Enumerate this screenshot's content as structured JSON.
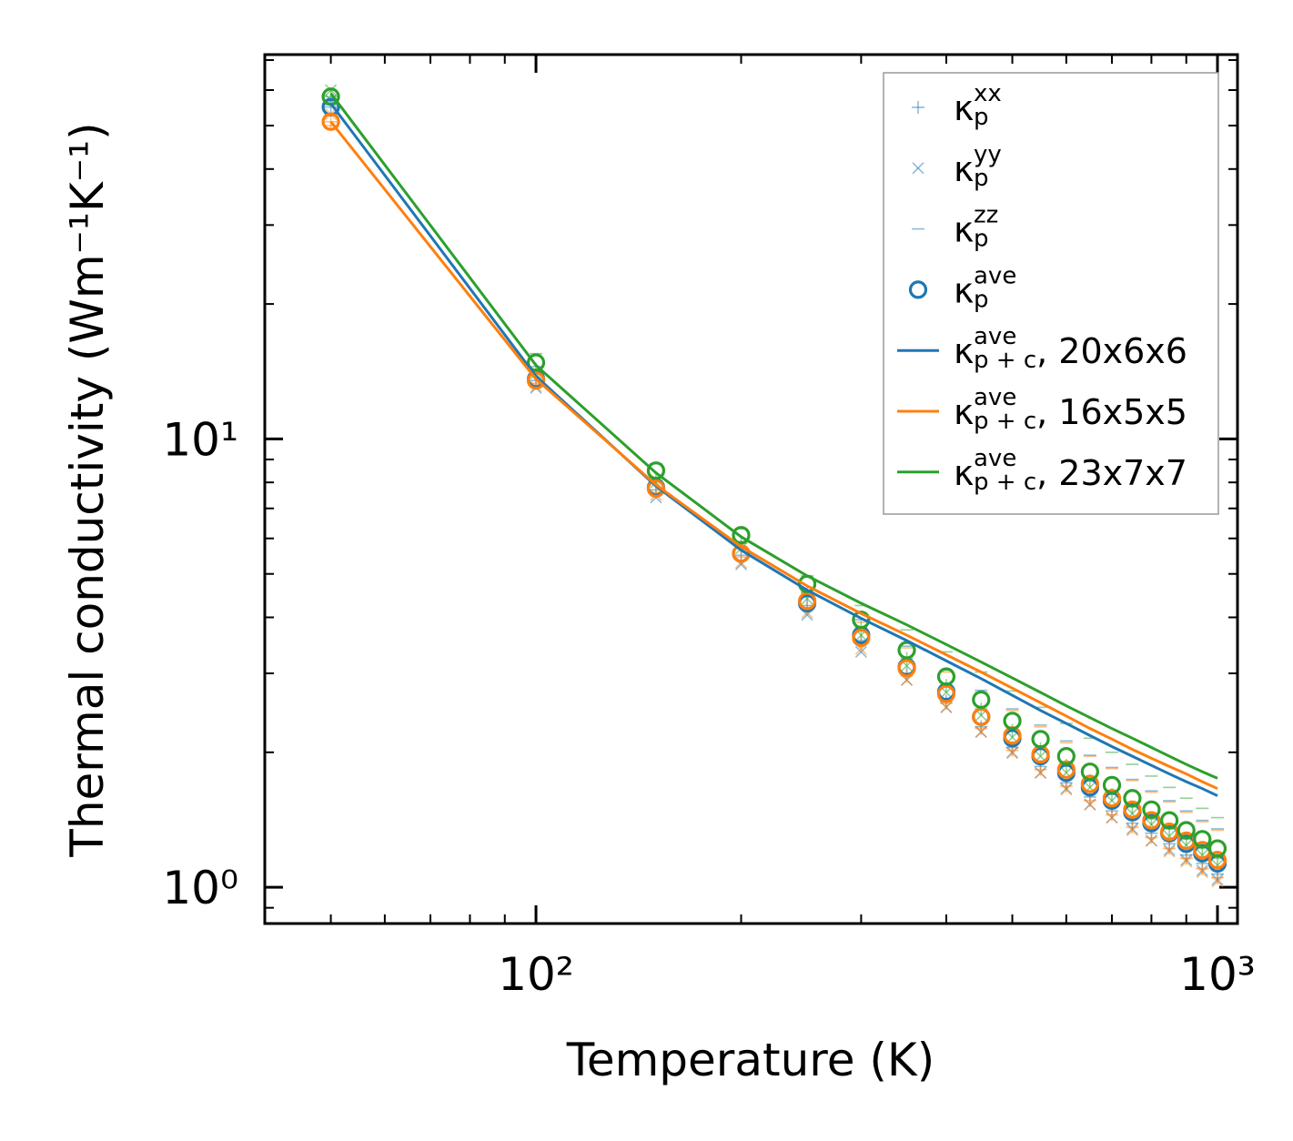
{
  "chart_data": {
    "type": "scatter",
    "scale": "log-log",
    "xlabel": "Temperature (K)",
    "ylabel": "Thermal conductivity (Wm⁻¹K⁻¹)",
    "xlim": [
      40,
      1070
    ],
    "ylim": [
      0.83,
      72
    ],
    "x_major_ticks": [
      100,
      1000
    ],
    "x_major_tick_labels": [
      "10²",
      "10³"
    ],
    "y_major_ticks": [
      1,
      10
    ],
    "y_major_tick_labels": [
      "10⁰",
      "10¹"
    ],
    "colors": {
      "blue": "#1f77b4",
      "orange": "#ff7f0e",
      "green": "#2ca02c"
    },
    "temperatures": [
      50,
      100,
      150,
      200,
      250,
      300,
      350,
      400,
      450,
      500,
      550,
      600,
      650,
      700,
      750,
      800,
      850,
      900,
      950,
      1000
    ],
    "series": [
      {
        "name": "20x6x6",
        "color": "#1f77b4",
        "kappa_xx": [
          55,
          13.5,
          7.7,
          5.5,
          4.25,
          3.55,
          3.0,
          2.6,
          2.28,
          2.05,
          1.86,
          1.71,
          1.59,
          1.48,
          1.39,
          1.32,
          1.25,
          1.18,
          1.13,
          1.07
        ],
        "kappa_yy": [
          57,
          13.0,
          7.4,
          5.25,
          4.05,
          3.35,
          2.9,
          2.52,
          2.22,
          2.0,
          1.8,
          1.66,
          1.53,
          1.43,
          1.35,
          1.27,
          1.21,
          1.15,
          1.09,
          1.04
        ],
        "kappa_zz": [
          53,
          14.5,
          8.2,
          5.9,
          4.6,
          3.95,
          3.45,
          3.05,
          2.75,
          2.5,
          2.3,
          2.12,
          1.97,
          1.85,
          1.74,
          1.64,
          1.56,
          1.48,
          1.41,
          1.35
        ],
        "kappa_ave": [
          55,
          13.6,
          7.8,
          5.55,
          4.3,
          3.65,
          3.1,
          2.73,
          2.4,
          2.15,
          1.96,
          1.8,
          1.67,
          1.56,
          1.47,
          1.39,
          1.32,
          1.25,
          1.19,
          1.13
        ],
        "kappa_pc": [
          56,
          13.8,
          7.85,
          5.65,
          4.6,
          3.98,
          3.55,
          3.2,
          2.92,
          2.68,
          2.48,
          2.32,
          2.18,
          2.06,
          1.96,
          1.87,
          1.79,
          1.72,
          1.66,
          1.6
        ]
      },
      {
        "name": "16x5x5",
        "color": "#ff7f0e",
        "kappa_xx": [
          51,
          13.3,
          7.6,
          5.45,
          4.2,
          3.5,
          2.96,
          2.57,
          2.26,
          2.02,
          1.83,
          1.68,
          1.56,
          1.45,
          1.36,
          1.29,
          1.22,
          1.16,
          1.1,
          1.05
        ],
        "kappa_yy": [
          53,
          13.1,
          7.5,
          5.3,
          4.1,
          3.4,
          2.9,
          2.52,
          2.22,
          1.99,
          1.8,
          1.65,
          1.53,
          1.43,
          1.34,
          1.27,
          1.2,
          1.14,
          1.08,
          1.03
        ],
        "kappa_zz": [
          50,
          14.3,
          8.1,
          5.85,
          4.55,
          3.9,
          3.42,
          3.02,
          2.72,
          2.48,
          2.28,
          2.1,
          1.96,
          1.84,
          1.73,
          1.63,
          1.55,
          1.47,
          1.4,
          1.34
        ],
        "kappa_ave": [
          51,
          13.5,
          7.75,
          5.55,
          4.35,
          3.6,
          3.08,
          2.7,
          2.4,
          2.18,
          1.98,
          1.83,
          1.7,
          1.58,
          1.49,
          1.41,
          1.33,
          1.27,
          1.21,
          1.15
        ],
        "kappa_pc": [
          51,
          13.6,
          7.9,
          5.75,
          4.7,
          4.08,
          3.65,
          3.3,
          3.02,
          2.78,
          2.58,
          2.41,
          2.26,
          2.14,
          2.03,
          1.94,
          1.86,
          1.79,
          1.72,
          1.66
        ]
      },
      {
        "name": "23x7x7",
        "color": "#2ca02c",
        "kappa_xx": [
          58,
          14.3,
          8.2,
          5.9,
          4.55,
          3.8,
          3.24,
          2.82,
          2.5,
          2.24,
          2.04,
          1.87,
          1.73,
          1.61,
          1.51,
          1.42,
          1.35,
          1.28,
          1.22,
          1.16
        ],
        "kappa_yy": [
          60,
          14.0,
          8.0,
          5.7,
          4.4,
          3.65,
          3.12,
          2.72,
          2.42,
          2.16,
          1.96,
          1.8,
          1.67,
          1.56,
          1.46,
          1.38,
          1.3,
          1.24,
          1.18,
          1.12
        ],
        "kappa_zz": [
          57,
          15.5,
          8.8,
          6.3,
          4.95,
          4.25,
          3.75,
          3.35,
          3.02,
          2.74,
          2.52,
          2.32,
          2.15,
          2.0,
          1.88,
          1.77,
          1.67,
          1.58,
          1.5,
          1.43
        ],
        "kappa_ave": [
          58,
          14.8,
          8.5,
          6.1,
          4.75,
          3.95,
          3.38,
          2.95,
          2.62,
          2.35,
          2.14,
          1.96,
          1.81,
          1.69,
          1.58,
          1.49,
          1.41,
          1.34,
          1.28,
          1.22
        ],
        "kappa_pc": [
          59,
          14.6,
          8.4,
          6.05,
          4.95,
          4.3,
          3.85,
          3.48,
          3.18,
          2.93,
          2.72,
          2.54,
          2.39,
          2.26,
          2.15,
          2.05,
          1.96,
          1.88,
          1.81,
          1.75
        ]
      }
    ],
    "legend": {
      "position": "top-right",
      "entries": [
        {
          "marker": "plus",
          "symbol": "κ",
          "sub": "p",
          "sup": "xx",
          "suffix": ""
        },
        {
          "marker": "x",
          "symbol": "κ",
          "sub": "p",
          "sup": "yy",
          "suffix": ""
        },
        {
          "marker": "dash",
          "symbol": "κ",
          "sub": "p",
          "sup": "zz",
          "suffix": ""
        },
        {
          "marker": "circle",
          "symbol": "κ",
          "sub": "p",
          "sup": "ave",
          "suffix": ""
        },
        {
          "marker": "line",
          "color": "#1f77b4",
          "symbol": "κ",
          "sub": "p + c",
          "sup": "ave",
          "suffix": ", 20x6x6"
        },
        {
          "marker": "line",
          "color": "#ff7f0e",
          "symbol": "κ",
          "sub": "p + c",
          "sup": "ave",
          "suffix": ", 16x5x5"
        },
        {
          "marker": "line",
          "color": "#2ca02c",
          "symbol": "κ",
          "sub": "p + c",
          "sup": "ave",
          "suffix": ", 23x7x7"
        }
      ]
    }
  }
}
